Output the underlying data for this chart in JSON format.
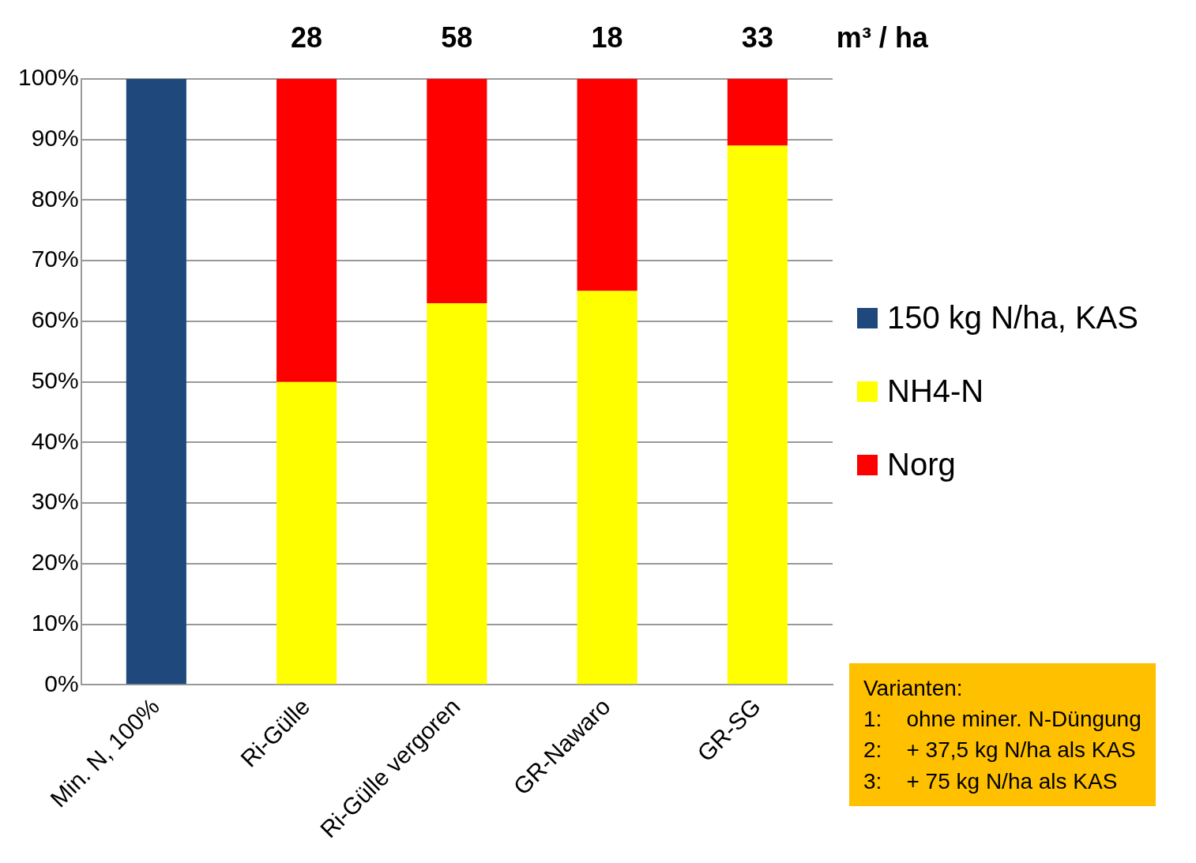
{
  "chart_data": {
    "type": "bar",
    "stacked": true,
    "categories": [
      "Min. N, 100%",
      "Ri-Gülle",
      "Ri-Gülle vergoren",
      "GR-Nawaro",
      "GR-SG"
    ],
    "series": [
      {
        "name": "150 kg N/ha, KAS",
        "color": "#1f497d",
        "values": [
          100,
          null,
          null,
          null,
          null
        ]
      },
      {
        "name": "NH4-N",
        "color": "#ffff00",
        "values": [
          null,
          50,
          63,
          65,
          89
        ]
      },
      {
        "name": "Norg",
        "color": "#ff0000",
        "values": [
          null,
          50,
          37,
          35,
          11
        ]
      }
    ],
    "ylim": [
      0,
      100
    ],
    "yticks": [
      {
        "value": 0,
        "label": "0%"
      },
      {
        "value": 10,
        "label": "10%"
      },
      {
        "value": 20,
        "label": "20%"
      },
      {
        "value": 30,
        "label": "30%"
      },
      {
        "value": 40,
        "label": "40%"
      },
      {
        "value": 50,
        "label": "50%"
      },
      {
        "value": 60,
        "label": "60%"
      },
      {
        "value": 70,
        "label": "70%"
      },
      {
        "value": 80,
        "label": "80%"
      },
      {
        "value": 90,
        "label": "90%"
      },
      {
        "value": 100,
        "label": "100%"
      }
    ],
    "grid": "y",
    "legend": "right",
    "annotations": [
      "28",
      "58",
      "18",
      "33",
      "m³ / ha",
      "Varianten:",
      "1:    ohne miner. N-Düngung",
      "2:    + 37,5 kg N/ha als KAS",
      "3:    + 75 kg N/ha als KAS"
    ]
  }
}
